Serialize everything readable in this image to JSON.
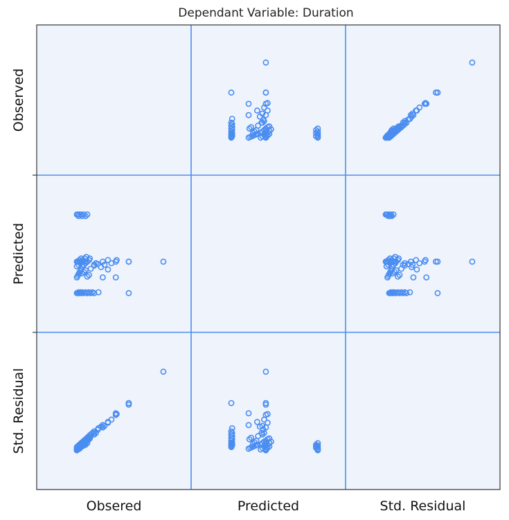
{
  "chart_data": {
    "type": "scatter",
    "title": "Dependant Variable: Duration",
    "variables": [
      "Observed",
      "Predicted",
      "Std. Residual"
    ],
    "column_labels": [
      "Obsered",
      "Predicted",
      "Std. Residual"
    ],
    "row_labels": [
      "Observed",
      "Predicted",
      "Std. Residual"
    ],
    "grid": true,
    "diagonal_empty": true,
    "colors": {
      "background": "#eef3fc",
      "grid": "#4a8df0",
      "marker": "#4a8df0",
      "frame": "#333333"
    },
    "points": [
      {
        "o": 0.0,
        "p": 0.4,
        "r": 0.0
      },
      {
        "o": 0.01,
        "p": 0.4,
        "r": 0.01
      },
      {
        "o": 0.02,
        "p": 0.4,
        "r": 0.02
      },
      {
        "o": 0.03,
        "p": 0.42,
        "r": 0.03
      },
      {
        "o": 0.04,
        "p": 0.4,
        "r": 0.04
      },
      {
        "o": 0.05,
        "p": 0.44,
        "r": 0.05
      },
      {
        "o": 0.06,
        "p": 0.4,
        "r": 0.06
      },
      {
        "o": 0.07,
        "p": 0.42,
        "r": 0.07
      },
      {
        "o": 0.08,
        "p": 0.4,
        "r": 0.08
      },
      {
        "o": 0.09,
        "p": 0.44,
        "r": 0.09
      },
      {
        "o": 0.1,
        "p": 0.4,
        "r": 0.1
      },
      {
        "o": 0.11,
        "p": 0.46,
        "r": 0.11
      },
      {
        "o": 0.12,
        "p": 0.4,
        "r": 0.12
      },
      {
        "o": 0.14,
        "p": 0.42,
        "r": 0.14
      },
      {
        "o": 0.15,
        "p": 0.44,
        "r": 0.15
      },
      {
        "o": 0.0,
        "p": 0.0,
        "r": 0.04
      },
      {
        "o": 0.01,
        "p": 0.0,
        "r": 0.05
      },
      {
        "o": 0.02,
        "p": 0.01,
        "r": 0.06
      },
      {
        "o": 0.03,
        "p": 0.0,
        "r": 0.07
      },
      {
        "o": 0.04,
        "p": 0.01,
        "r": 0.08
      },
      {
        "o": 0.05,
        "p": 0.0,
        "r": 0.09
      },
      {
        "o": 0.06,
        "p": 0.01,
        "r": 0.1
      },
      {
        "o": 0.08,
        "p": 0.0,
        "r": 0.12
      },
      {
        "o": 0.1,
        "p": 0.01,
        "r": 0.14
      },
      {
        "o": 0.12,
        "p": 0.0,
        "r": 0.16
      },
      {
        "o": 0.14,
        "p": 0.01,
        "r": 0.18
      },
      {
        "o": 0.16,
        "p": 0.0,
        "r": 0.2
      },
      {
        "o": 0.18,
        "p": 0.01,
        "r": 0.22
      },
      {
        "o": 0.2,
        "p": 0.0,
        "r": 0.24
      },
      {
        "o": 0.25,
        "p": 0.01,
        "r": 0.28
      },
      {
        "o": 0.0,
        "p": 0.2,
        "r": 0.02
      },
      {
        "o": 0.01,
        "p": 0.22,
        "r": 0.03
      },
      {
        "o": 0.02,
        "p": 0.24,
        "r": 0.04
      },
      {
        "o": 0.03,
        "p": 0.26,
        "r": 0.05
      },
      {
        "o": 0.04,
        "p": 0.28,
        "r": 0.06
      },
      {
        "o": 0.05,
        "p": 0.3,
        "r": 0.07
      },
      {
        "o": 0.06,
        "p": 0.25,
        "r": 0.08
      },
      {
        "o": 0.08,
        "p": 0.27,
        "r": 0.1
      },
      {
        "o": 0.1,
        "p": 0.29,
        "r": 0.12
      },
      {
        "o": 0.12,
        "p": 0.21,
        "r": 0.14
      },
      {
        "o": 0.14,
        "p": 0.23,
        "r": 0.16
      },
      {
        "o": 0.16,
        "p": 0.31,
        "r": 0.18
      },
      {
        "o": 0.2,
        "p": 0.35,
        "r": 0.22
      },
      {
        "o": 0.24,
        "p": 0.37,
        "r": 0.26
      },
      {
        "o": 0.28,
        "p": 0.33,
        "r": 0.3
      },
      {
        "o": 0.0,
        "p": 0.34,
        "r": 0.01
      },
      {
        "o": 0.02,
        "p": 0.36,
        "r": 0.03
      },
      {
        "o": 0.04,
        "p": 0.38,
        "r": 0.05
      },
      {
        "o": 0.06,
        "p": 0.34,
        "r": 0.07
      },
      {
        "o": 0.08,
        "p": 0.36,
        "r": 0.09
      },
      {
        "o": 0.1,
        "p": 0.38,
        "r": 0.11
      },
      {
        "o": 0.2,
        "p": 0.36,
        "r": 0.2
      },
      {
        "o": 0.22,
        "p": 0.38,
        "r": 0.22
      },
      {
        "o": 0.3,
        "p": 0.4,
        "r": 0.29
      },
      {
        "o": 0.32,
        "p": 0.36,
        "r": 0.31
      },
      {
        "o": 0.36,
        "p": 0.42,
        "r": 0.35
      },
      {
        "o": 0.4,
        "p": 0.38,
        "r": 0.39
      },
      {
        "o": 0.3,
        "p": 0.2,
        "r": 0.32
      },
      {
        "o": 0.36,
        "p": 0.3,
        "r": 0.36
      },
      {
        "o": 0.45,
        "p": 0.4,
        "r": 0.45
      },
      {
        "o": 0.46,
        "p": 0.42,
        "r": 0.46
      },
      {
        "o": 0.6,
        "p": 0.4,
        "r": 0.58
      },
      {
        "o": 0.45,
        "p": 0.2,
        "r": 0.47
      },
      {
        "o": 0.6,
        "p": 0.0,
        "r": 0.6
      },
      {
        "o": 0.6,
        "p": 0.4,
        "r": 0.6
      },
      {
        "o": 1.0,
        "p": 0.4,
        "r": 1.0
      },
      {
        "o": 0.0,
        "p": 1.0,
        "r": 0.0
      },
      {
        "o": 0.01,
        "p": 1.0,
        "r": 0.01
      },
      {
        "o": 0.03,
        "p": 1.0,
        "r": 0.02
      },
      {
        "o": 0.05,
        "p": 1.0,
        "r": 0.04
      },
      {
        "o": 0.08,
        "p": 1.0,
        "r": 0.06
      },
      {
        "o": 0.12,
        "p": 1.0,
        "r": 0.09
      },
      {
        "o": 0.02,
        "p": 0.98,
        "r": 0.03
      },
      {
        "o": 0.06,
        "p": 0.98,
        "r": 0.05
      },
      {
        "o": 0.1,
        "p": 0.98,
        "r": 0.07
      }
    ]
  }
}
